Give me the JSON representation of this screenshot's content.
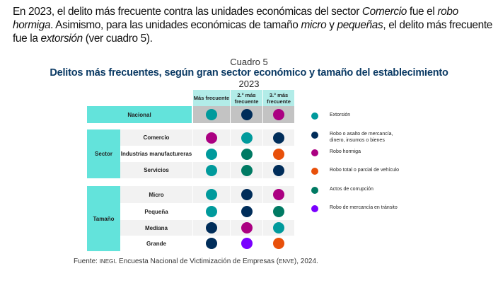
{
  "paragraph": [
    {
      "text": "En 2023, el delito más frecuente contra las unidades económicas del sector ",
      "italic": false
    },
    {
      "text": "Comercio",
      "italic": true
    },
    {
      "text": " fue el ",
      "italic": false
    },
    {
      "text": "robo hormiga",
      "italic": true
    },
    {
      "text": ". Asimismo, para las unidades económicas de tamaño ",
      "italic": false
    },
    {
      "text": "micro",
      "italic": true
    },
    {
      "text": " y ",
      "italic": false
    },
    {
      "text": "pequeñas",
      "italic": true
    },
    {
      "text": ", el delito más frecuente fue la ",
      "italic": false
    },
    {
      "text": "extorsión",
      "italic": true
    },
    {
      "text": " (ver cuadro 5).",
      "italic": false
    }
  ],
  "caption": {
    "label": "Cuadro 5",
    "title": "Delitos más frecuentes, según gran sector económico y tamaño del establecimiento",
    "year": "2023"
  },
  "table": {
    "columns": [
      "Más frecuente",
      "2.° más frecuente",
      "3.° más frecuente"
    ],
    "national": {
      "label": "Nacional",
      "values": [
        "extorsion",
        "robo_asalto",
        "robo_hormiga"
      ]
    },
    "groups": [
      {
        "label": "Sector",
        "rows": [
          {
            "label": "Comercio",
            "values": [
              "robo_hormiga",
              "extorsion",
              "robo_asalto"
            ]
          },
          {
            "label": "Industrias manufactureras",
            "values": [
              "extorsion",
              "corrupcion",
              "robo_vehiculo"
            ]
          },
          {
            "label": "Servicios",
            "values": [
              "extorsion",
              "corrupcion",
              "robo_asalto"
            ]
          }
        ]
      },
      {
        "label": "Tamaño",
        "rows": [
          {
            "label": "Micro",
            "values": [
              "extorsion",
              "robo_asalto",
              "robo_hormiga"
            ]
          },
          {
            "label": "Pequeña",
            "values": [
              "extorsion",
              "robo_asalto",
              "corrupcion"
            ]
          },
          {
            "label": "Mediana",
            "values": [
              "robo_asalto",
              "robo_hormiga",
              "extorsion"
            ]
          },
          {
            "label": "Grande",
            "values": [
              "robo_asalto",
              "robo_transito",
              "robo_vehiculo"
            ]
          }
        ]
      }
    ]
  },
  "legend": [
    {
      "key": "extorsion",
      "label": "Extorsión",
      "color": "#009a9c"
    },
    {
      "key": "robo_asalto",
      "label": "Robo o asalto de mercancía, dinero, insumos o bienes",
      "color": "#002d5a"
    },
    {
      "key": "robo_hormiga",
      "label": "Robo hormiga",
      "color": "#ab0082"
    },
    {
      "key": "robo_vehiculo",
      "label": "Robo total o parcial de vehículo",
      "color": "#e8500a"
    },
    {
      "key": "corrupcion",
      "label": "Actos de corrupción",
      "color": "#007a63"
    },
    {
      "key": "robo_transito",
      "label": "Robo de mercancía en tránsito",
      "color": "#7a00ff"
    }
  ],
  "source": {
    "prefix": "Fuente: ",
    "org": "INEGI",
    "text": ". Encuesta Nacional de Victimización de Empresas (",
    "abbr": "ENVE",
    "suffix": "), 2024."
  }
}
